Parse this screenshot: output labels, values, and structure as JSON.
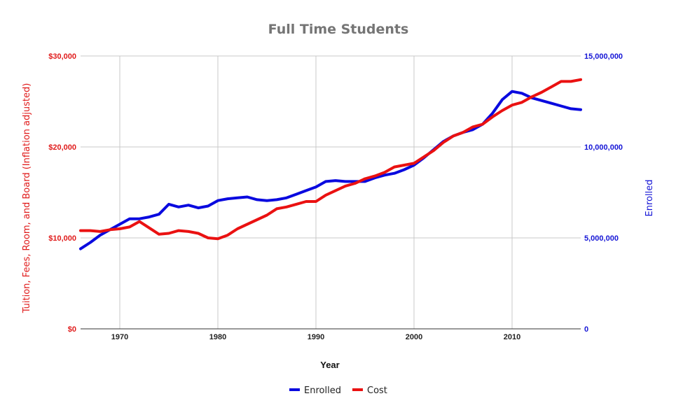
{
  "chart_data": {
    "type": "line",
    "title": "Full Time Students",
    "xlabel": "Year",
    "ylabel_left": "Tuition, Fees, Room, and Board (Inflation adjusted)",
    "ylabel_right": "Enrolled",
    "xlim": [
      1966,
      2017
    ],
    "ylim_left": [
      0,
      30000
    ],
    "ylim_right": [
      0,
      15000000
    ],
    "x_ticks": [
      1970,
      1980,
      1990,
      2000,
      2010
    ],
    "x_tick_labels": [
      "1970",
      "1980",
      "1990",
      "2000",
      "2010"
    ],
    "y_left_ticks": [
      0,
      10000,
      20000,
      30000
    ],
    "y_left_tick_labels": [
      "$0",
      "$10,000",
      "$20,000",
      "$30,000"
    ],
    "y_right_ticks": [
      0,
      5000000,
      10000000,
      15000000
    ],
    "y_right_tick_labels": [
      "0",
      "5,000,000",
      "10,000,000",
      "15,000,000"
    ],
    "grid": true,
    "legend_position": "bottom",
    "colors": {
      "left_axis": "#e01b1b",
      "right_axis": "#1515d6"
    },
    "x": [
      1966,
      1967,
      1968,
      1969,
      1970,
      1971,
      1972,
      1973,
      1974,
      1975,
      1976,
      1977,
      1978,
      1979,
      1980,
      1981,
      1982,
      1983,
      1984,
      1985,
      1986,
      1987,
      1988,
      1989,
      1990,
      1991,
      1992,
      1993,
      1994,
      1995,
      1996,
      1997,
      1998,
      1999,
      2000,
      2001,
      2002,
      2003,
      2004,
      2005,
      2006,
      2007,
      2008,
      2009,
      2010,
      2011,
      2012,
      2013,
      2014,
      2015,
      2016,
      2017
    ],
    "series": [
      {
        "name": "Enrolled",
        "axis": "right",
        "color": "#0a0adf",
        "values": [
          4400000,
          4750000,
          5150000,
          5450000,
          5750000,
          6050000,
          6050000,
          6150000,
          6300000,
          6850000,
          6700000,
          6800000,
          6650000,
          6750000,
          7050000,
          7150000,
          7200000,
          7250000,
          7100000,
          7050000,
          7100000,
          7200000,
          7400000,
          7600000,
          7800000,
          8100000,
          8150000,
          8100000,
          8100000,
          8100000,
          8300000,
          8450000,
          8550000,
          8750000,
          9000000,
          9400000,
          9850000,
          10300000,
          10600000,
          10800000,
          10950000,
          11250000,
          11850000,
          12600000,
          13050000,
          12950000,
          12700000,
          12550000,
          12400000,
          12250000,
          12100000,
          12050000
        ]
      },
      {
        "name": "Cost",
        "axis": "left",
        "color": "#ea1111",
        "values": [
          10800,
          10800,
          10700,
          10900,
          11000,
          11200,
          11800,
          11100,
          10400,
          10500,
          10800,
          10700,
          10500,
          10000,
          9900,
          10300,
          11000,
          11500,
          12000,
          12500,
          13200,
          13400,
          13700,
          14000,
          14000,
          14700,
          15200,
          15700,
          16000,
          16500,
          16800,
          17200,
          17800,
          18000,
          18200,
          18900,
          19600,
          20500,
          21200,
          21600,
          22200,
          22500,
          23300,
          24000,
          24600,
          24900,
          25500,
          26000,
          26600,
          27200,
          27200,
          27400
        ]
      }
    ]
  }
}
